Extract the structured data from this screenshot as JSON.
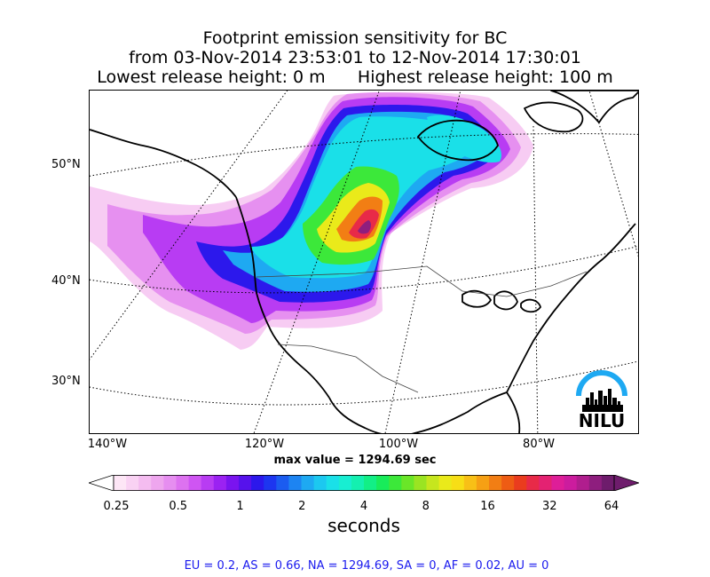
{
  "title": {
    "line1": "Footprint emission sensitivity for BC",
    "line2": "from 03-Nov-2014 23:53:01 to 12-Nov-2014 17:30:01",
    "line3_left": "Lowest release height: 0 m",
    "line3_right": "Highest release height: 100 m"
  },
  "map": {
    "lat_labels": [
      "50°N",
      "40°N",
      "30°N"
    ],
    "lon_labels": [
      "140°W",
      "120°W",
      "100°W",
      "80°W"
    ],
    "max_value_text": "max value = 1294.69 sec",
    "logo_text": "NILU"
  },
  "colorbar": {
    "ticks": [
      "0.25",
      "0.5",
      "1",
      "2",
      "4",
      "8",
      "16",
      "32",
      "64"
    ],
    "units": "seconds",
    "colors": [
      "#fde6f6",
      "#f9d2f3",
      "#f4bcf0",
      "#eea6ee",
      "#e68ef0",
      "#dd72f0",
      "#cf55f3",
      "#b83cf3",
      "#9b22f2",
      "#7a14ef",
      "#5612ec",
      "#2c18ec",
      "#1d36f0",
      "#1b5cf0",
      "#1d84f2",
      "#1ea9f2",
      "#1cc8f0",
      "#1ae0e8",
      "#18eed2",
      "#14f0b0",
      "#12ef86",
      "#18ec5a",
      "#3ce83a",
      "#6ae628",
      "#9ae422",
      "#c6e61e",
      "#eaea1a",
      "#f7de16",
      "#f8c016",
      "#f6a014",
      "#f27e14",
      "#ee5c14",
      "#ea3c1e",
      "#e82a48",
      "#e42272",
      "#de1e98",
      "#cc1c9e",
      "#b01e8e",
      "#8e1e7e",
      "#6e1c6c"
    ]
  },
  "regions_text": "EU = 0.2,  AS = 0.66,  NA = 1294.69,  SA = 0,  AF = 0.02,  AU = 0"
}
